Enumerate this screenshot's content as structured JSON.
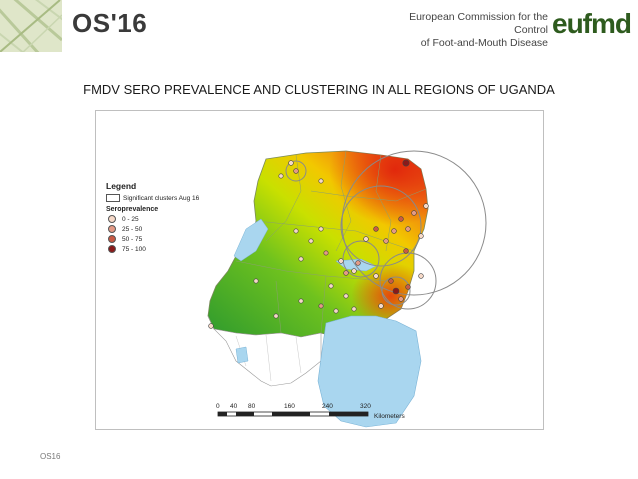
{
  "header": {
    "event": "OS'16",
    "org_line1": "European Commission for the Control",
    "org_line2": "of Foot-and-Mouth Disease",
    "logo": "eufmd"
  },
  "slide": {
    "title": "FMDV SERO PREVALENCE AND CLUSTERING IN ALL REGIONS OF UGANDA",
    "footer": "OS16"
  },
  "map": {
    "legend": {
      "title": "Legend",
      "cluster_label": "Significant clusters Aug 16",
      "sero_title": "Seroprevalence",
      "classes": [
        {
          "label": "0 - 25",
          "color": "#f6d9c8"
        },
        {
          "label": "25 - 50",
          "color": "#e49a86"
        },
        {
          "label": "50 - 75",
          "color": "#c95a44"
        },
        {
          "label": "75 - 100",
          "color": "#8a1a1a"
        }
      ]
    },
    "scale": {
      "ticks": [
        "0",
        "40",
        "80",
        "160",
        "240",
        "320"
      ],
      "unit": "Kilometers"
    },
    "colors": {
      "low": "#2e9a2e",
      "mid": "#c9e000",
      "high": "#e43b10",
      "water": "#a9d6ef"
    }
  }
}
